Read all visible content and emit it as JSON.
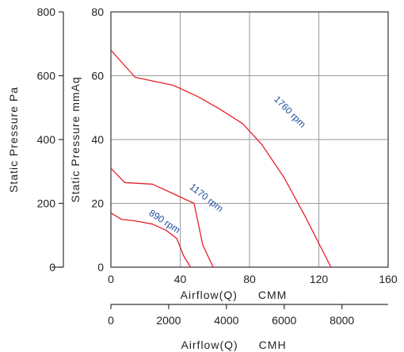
{
  "chart_data": {
    "type": "line",
    "title": "",
    "x_primary": {
      "label": "Airflow(Q)",
      "unit": "CMM",
      "range": [
        0,
        160
      ],
      "ticks": [
        0,
        40,
        80,
        120,
        160
      ]
    },
    "x_secondary": {
      "label": "Airflow(Q)",
      "unit": "CMH",
      "range": [
        0,
        9600
      ],
      "ticks": [
        0,
        2000,
        4000,
        6000,
        8000
      ]
    },
    "y_primary": {
      "label": "Static  Pressure  mmAq",
      "range": [
        0,
        80
      ],
      "ticks": [
        0,
        20,
        40,
        60,
        80
      ]
    },
    "y_secondary": {
      "label": "Static  Pressure  Pa",
      "range": [
        0,
        800
      ],
      "ticks": [
        0,
        200,
        400,
        600,
        800
      ]
    },
    "grid": true,
    "series": [
      {
        "name": "1760 rpm",
        "color": "#e8202a",
        "label_color": "#1f4fa0",
        "x": [
          0,
          14,
          36,
          50,
          63,
          76,
          87,
          100,
          112,
          127
        ],
        "y": [
          68,
          59.5,
          57,
          53.5,
          49.5,
          45,
          38.5,
          28,
          16,
          0
        ]
      },
      {
        "name": "1170 rpm",
        "color": "#e8202a",
        "label_color": "#1f4fa0",
        "x": [
          0,
          8,
          24,
          36,
          42,
          48,
          53,
          59
        ],
        "y": [
          31,
          26.5,
          26,
          23,
          21.5,
          20,
          7,
          0
        ]
      },
      {
        "name": "890 rpm",
        "color": "#e8202a",
        "label_color": "#1f4fa0",
        "x": [
          0,
          6,
          14,
          24,
          32,
          38,
          42,
          46
        ],
        "y": [
          17,
          15,
          14.5,
          13.5,
          11.5,
          9,
          3.5,
          0
        ]
      }
    ]
  }
}
